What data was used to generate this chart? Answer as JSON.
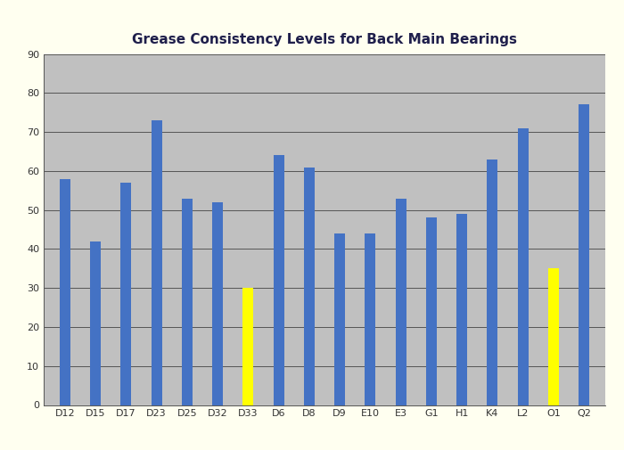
{
  "categories": [
    "D12",
    "D15",
    "D17",
    "D23",
    "D25",
    "D32",
    "D33",
    "D6",
    "D8",
    "D9",
    "E10",
    "E3",
    "G1",
    "H1",
    "K4",
    "L2",
    "O1",
    "Q2"
  ],
  "values": [
    58,
    42,
    57,
    73,
    53,
    52,
    30,
    64,
    61,
    44,
    44,
    53,
    48,
    49,
    63,
    71,
    35,
    77
  ],
  "bar_colors": [
    "#4472C4",
    "#4472C4",
    "#4472C4",
    "#4472C4",
    "#4472C4",
    "#4472C4",
    "#FFFF00",
    "#4472C4",
    "#4472C4",
    "#4472C4",
    "#4472C4",
    "#4472C4",
    "#4472C4",
    "#4472C4",
    "#4472C4",
    "#4472C4",
    "#FFFF00",
    "#4472C4"
  ],
  "title": "Grease Consistency Levels for Back Main Bearings",
  "ylim": [
    0,
    90
  ],
  "yticks": [
    0,
    10,
    20,
    30,
    40,
    50,
    60,
    70,
    80,
    90
  ],
  "plot_bg_color": "#C0C0C0",
  "outer_bg_color": "#FFFFF0",
  "title_fontsize": 11,
  "tick_fontsize": 8,
  "bar_width": 0.35,
  "grid_color": "#555555",
  "grid_linewidth": 0.7
}
